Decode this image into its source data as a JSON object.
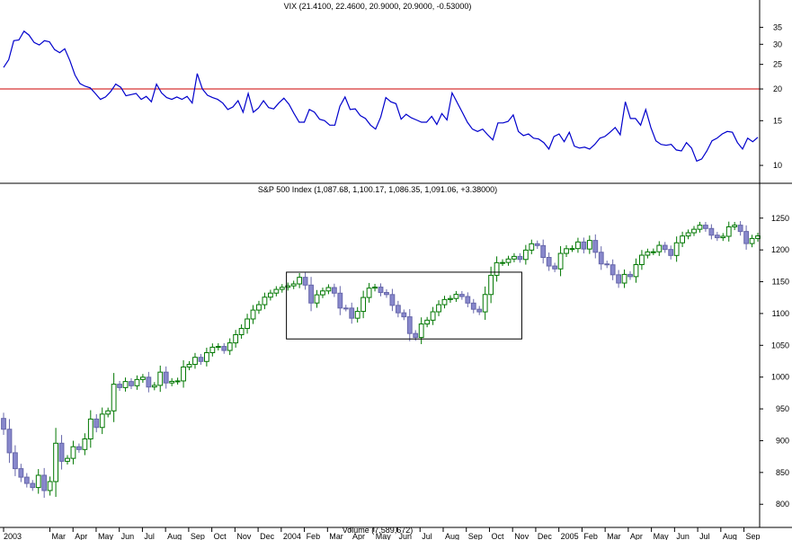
{
  "colors": {
    "vix_line": "#0000cc",
    "vix_threshold": "#cc0000",
    "candle_up": "#007700",
    "candle_down": "#8888cc",
    "candle_down_edge": "#6666aa",
    "frame": "#000000",
    "background": "#ffffff"
  },
  "chart_data": [
    {
      "type": "line",
      "title": "VIX (21.4100, 22.4600, 20.9000, 20.9000, -0.53000)",
      "y_scale": "log",
      "ylim": [
        8.5,
        40
      ],
      "y_ticks": [
        10,
        15,
        20,
        25,
        30,
        35
      ],
      "reference_line": 20,
      "x_start": "2003-01",
      "x_end": "2005-09",
      "series": [
        {
          "values": [
            24.3,
            26.1,
            31.0,
            31.2,
            33.8,
            32.6,
            30.5,
            29.8,
            31.0,
            30.7,
            28.6,
            27.8,
            28.8,
            25.9,
            22.7,
            21.0,
            20.5,
            20.2,
            19.2,
            18.2,
            18.6,
            19.5,
            20.9,
            20.3,
            18.8,
            19.0,
            19.2,
            18.2,
            18.7,
            17.8,
            20.9,
            19.3,
            18.5,
            18.2,
            18.6,
            18.2,
            18.7,
            17.6,
            23.0,
            20.0,
            18.9,
            18.5,
            18.2,
            17.6,
            16.6,
            17.0,
            18.0,
            16.2,
            19.2,
            16.2,
            16.8,
            18.0,
            16.9,
            16.7,
            17.6,
            18.4,
            17.4,
            16.0,
            14.8,
            14.8,
            16.6,
            16.2,
            15.2,
            15.0,
            14.4,
            14.4,
            17.1,
            18.6,
            16.6,
            16.7,
            15.7,
            15.3,
            14.4,
            13.9,
            15.5,
            18.5,
            17.8,
            17.5,
            15.2,
            15.9,
            15.4,
            15.1,
            14.8,
            14.8,
            15.6,
            14.5,
            16.0,
            15.1,
            19.3,
            17.7,
            16.2,
            14.8,
            13.9,
            13.6,
            13.9,
            13.2,
            12.6,
            14.7,
            14.7,
            14.9,
            15.8,
            13.6,
            13.1,
            13.3,
            12.8,
            12.7,
            12.3,
            11.6,
            13.0,
            13.3,
            12.4,
            13.5,
            11.9,
            11.7,
            11.8,
            11.6,
            12.1,
            12.8,
            13.0,
            13.5,
            14.1,
            13.2,
            17.8,
            15.3,
            15.3,
            14.4,
            16.6,
            14.1,
            12.5,
            12.1,
            12.0,
            12.1,
            11.5,
            11.4,
            12.3,
            11.7,
            10.4,
            10.6,
            11.4,
            12.5,
            12.8,
            13.3,
            13.6,
            13.5,
            12.3,
            11.6,
            12.8,
            12.4,
            12.9
          ]
        }
      ]
    },
    {
      "type": "candlestick",
      "title": "S&P 500 Index (1,087.68, 1,100.17, 1,086.35, 1,091.06, +3.38000)",
      "ylim": [
        765,
        1285
      ],
      "y_ticks": [
        800,
        850,
        900,
        950,
        1000,
        1050,
        1100,
        1150,
        1200,
        1250
      ],
      "x_start": "2003-01",
      "x_end": "2005-09",
      "annotation_box": {
        "x": [
          "2004-01",
          "2004-10"
        ],
        "y": [
          1060,
          1165
        ]
      },
      "weekly_open": [
        935.0,
        918.0,
        881.0,
        856.0,
        842.6,
        832.8,
        826.3,
        845.6,
        821.6,
        835.7,
        896.0,
        867.6,
        872.2,
        890.5,
        886.1,
        902.8,
        934.0,
        920.8,
        941.8,
        946.9,
        988.8,
        983.5,
        993.0,
        986.4,
        996.2,
        999.8,
        984.4,
        987.0,
        1007.8,
        990.8,
        993.3,
        994.0,
        1015.9,
        1020.0,
        1031.1,
        1024.6,
        1038.4,
        1047.0,
        1048.2,
        1041.9,
        1053.8,
        1066.7,
        1076.5,
        1091.4,
        1105.4,
        1113.9,
        1125.7,
        1132.1,
        1137.9,
        1141.2,
        1143.5,
        1146.5,
        1156.9,
        1144.7,
        1116.5,
        1129.4,
        1135.5,
        1140.8,
        1132.0,
        1108.6,
        1108.5,
        1092.6,
        1103.3,
        1125.2,
        1139.9,
        1141.5,
        1133.1,
        1129.8,
        1112.8,
        1101.1,
        1094.8,
        1068.6,
        1062.3,
        1083.5,
        1089.5,
        1102.7,
        1113.9,
        1122.0,
        1123.6,
        1130.1,
        1126.7,
        1116.4,
        1106.7,
        1102.6,
        1129.9,
        1160.1,
        1179.9,
        1180.2,
        1185.7,
        1189.8,
        1185.0,
        1199.7,
        1209.7,
        1206.8,
        1188.2,
        1174.7,
        1170.2,
        1194.5,
        1201.9,
        1202.1,
        1212.5,
        1201.4,
        1214.9,
        1196.3,
        1178.0,
        1176.6,
        1160.9,
        1147.9,
        1161.5,
        1158.0,
        1176.9,
        1191.7,
        1196.9,
        1197.1,
        1207.2,
        1200.7,
        1191.3,
        1211.2,
        1221.9,
        1227.0,
        1232.5,
        1238.9,
        1233.7,
        1223.2,
        1219.2,
        1221.4,
        1236.3,
        1238.9,
        1229.0,
        1210.0,
        1218.0
      ],
      "weekly_close": [
        918.0,
        881.0,
        856.0,
        842.6,
        832.8,
        826.3,
        845.6,
        821.6,
        835.7,
        896.0,
        867.6,
        872.2,
        890.5,
        886.1,
        902.8,
        934.0,
        920.8,
        941.8,
        946.9,
        988.8,
        983.5,
        993.0,
        986.4,
        996.2,
        999.8,
        984.4,
        987.0,
        1007.8,
        990.8,
        993.3,
        994.0,
        1015.9,
        1020.0,
        1031.1,
        1024.6,
        1038.4,
        1047.0,
        1048.2,
        1041.9,
        1053.8,
        1066.7,
        1076.5,
        1091.4,
        1105.4,
        1113.9,
        1125.7,
        1132.1,
        1137.9,
        1141.2,
        1143.5,
        1146.5,
        1156.9,
        1144.7,
        1116.5,
        1129.4,
        1135.5,
        1140.8,
        1132.0,
        1108.6,
        1108.5,
        1092.6,
        1103.3,
        1125.2,
        1139.9,
        1141.5,
        1133.1,
        1129.8,
        1112.8,
        1101.1,
        1094.8,
        1068.6,
        1062.3,
        1083.5,
        1089.5,
        1102.7,
        1113.9,
        1122.0,
        1123.6,
        1130.1,
        1126.7,
        1116.4,
        1106.7,
        1102.6,
        1129.9,
        1160.1,
        1179.9,
        1180.2,
        1185.7,
        1189.8,
        1185.0,
        1199.7,
        1209.7,
        1206.8,
        1188.2,
        1174.7,
        1170.2,
        1194.5,
        1201.9,
        1202.1,
        1212.5,
        1201.4,
        1214.9,
        1196.3,
        1178.0,
        1176.6,
        1160.9,
        1147.9,
        1161.5,
        1158.0,
        1176.9,
        1191.7,
        1196.9,
        1197.1,
        1207.2,
        1200.7,
        1191.3,
        1211.2,
        1221.9,
        1227.0,
        1232.5,
        1238.9,
        1233.7,
        1223.2,
        1219.2,
        1221.4,
        1236.3,
        1238.9,
        1229.0,
        1210.0,
        1218.0,
        1222.0
      ]
    }
  ],
  "vix_y_tick_labels": [
    "10",
    "15",
    "20",
    "25",
    "30",
    "35"
  ],
  "spx_y_tick_labels": [
    "800",
    "850",
    "900",
    "950",
    "1000",
    "1050",
    "1100",
    "1150",
    "1200",
    "1250"
  ],
  "x_axis_labels": [
    "2003",
    "Mar",
    "Apr",
    "May",
    "Jun",
    "Jul",
    "Aug",
    "Sep",
    "Oct",
    "Nov",
    "Dec",
    "2004",
    "Feb",
    "Mar",
    "Apr",
    "May",
    "Jun",
    "Jul",
    "Aug",
    "Sep",
    "Oct",
    "Nov",
    "Dec",
    "2005",
    "Feb",
    "Mar",
    "Apr",
    "May",
    "Jun",
    "Jul",
    "Aug",
    "Sep"
  ],
  "volume_label": "Volume (7,589,672)"
}
